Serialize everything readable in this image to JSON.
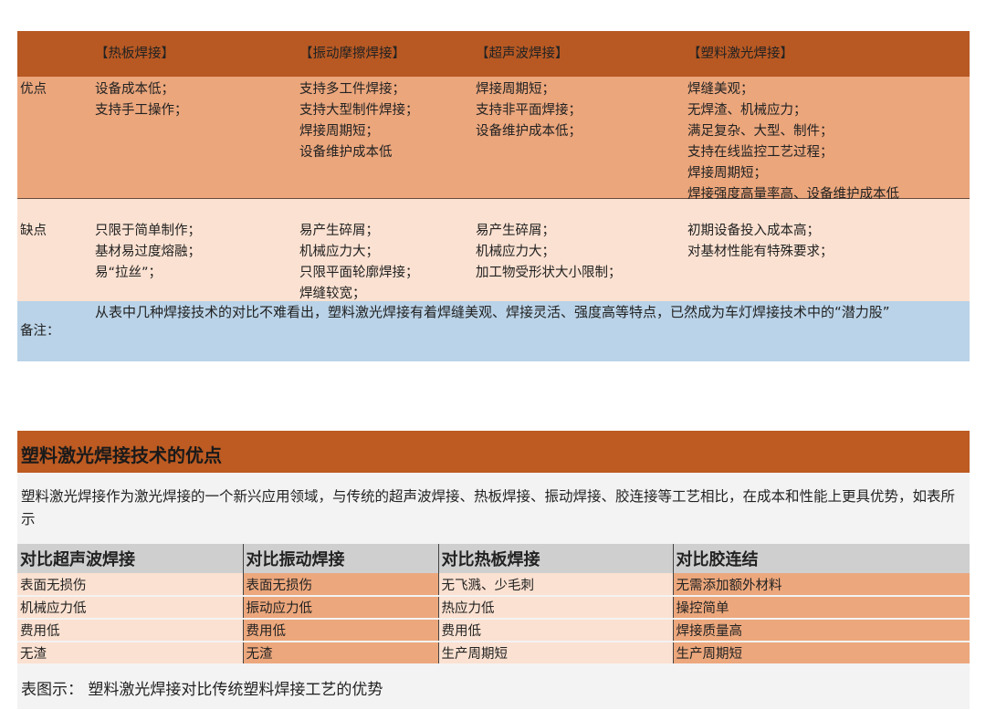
{
  "comparison_table": {
    "headers": [
      "【热板焊接】",
      "【振动摩擦焊接】",
      "【超声波焊接】",
      "【塑料激光焊接】"
    ],
    "advantages": {
      "label": "优点",
      "cells": [
        "设备成本低；\n支持手工操作；",
        "支持多工件焊接；\n支持大型制件焊接；\n焊接周期短；\n设备维护成本低",
        "焊接周期短；\n支持非平面焊接；\n设备维护成本低；",
        "焊缝美观；\n无焊渣、机械应力；\n满足复杂、大型、制件；\n支持在线监控工艺过程；\n焊接周期短；\n焊接强度高量率高、设备维护成本低"
      ]
    },
    "disadvantages": {
      "label": "缺点",
      "cells": [
        "只限于简单制作；\n基材易过度熔融；\n易“拉丝”；",
        "易产生碎屑；\n机械应力大；\n只限平面轮廓焊接；\n焊缝较宽；",
        "易产生碎屑；\n机械应力大；\n加工物受形状大小限制；",
        "初期设备投入成本高；\n对基材性能有特殊要求；"
      ]
    },
    "note": {
      "label": "备注：",
      "text": "从表中几种焊接技术的对比不难看出，塑料激光焊接有着焊缝美观、焊接灵活、强度高等特点，已然成为车灯焊接技术中的“潜力股”"
    }
  },
  "section": {
    "title": "塑料激光焊接技术的优点",
    "paragraph": "塑料激光焊接作为激光焊接的一个新兴应用领域，与传统的超声波焊接、热板焊接、振动焊接、胶连接等工艺相比，在成本和性能上更具优势，如表所示",
    "table": {
      "headers": [
        "对比超声波焊接",
        "对比振动焊接",
        "对比热板焊接",
        "对比胶连结"
      ],
      "rows": [
        [
          "表面无损伤",
          "表面无损伤",
          "无飞溅、少毛刺",
          "无需添加额外材料"
        ],
        [
          "机械应力低",
          "振动应力低",
          "热应力低",
          "操控简单"
        ],
        [
          "费用低",
          "费用低",
          "费用低",
          "焊接质量高"
        ],
        [
          "无渣",
          "无渣",
          "生产周期短",
          "生产周期短"
        ]
      ]
    },
    "caption": "表图示：  塑料激光焊接对比传统塑料焊接工艺的优势"
  },
  "colors": {
    "header_brown": "#b85923",
    "advantage_orange": "#eba67c",
    "disadvantage_peach": "#fbe1d1",
    "note_blue": "#bad3e8",
    "table_header_gray": "#cfcfcf"
  }
}
